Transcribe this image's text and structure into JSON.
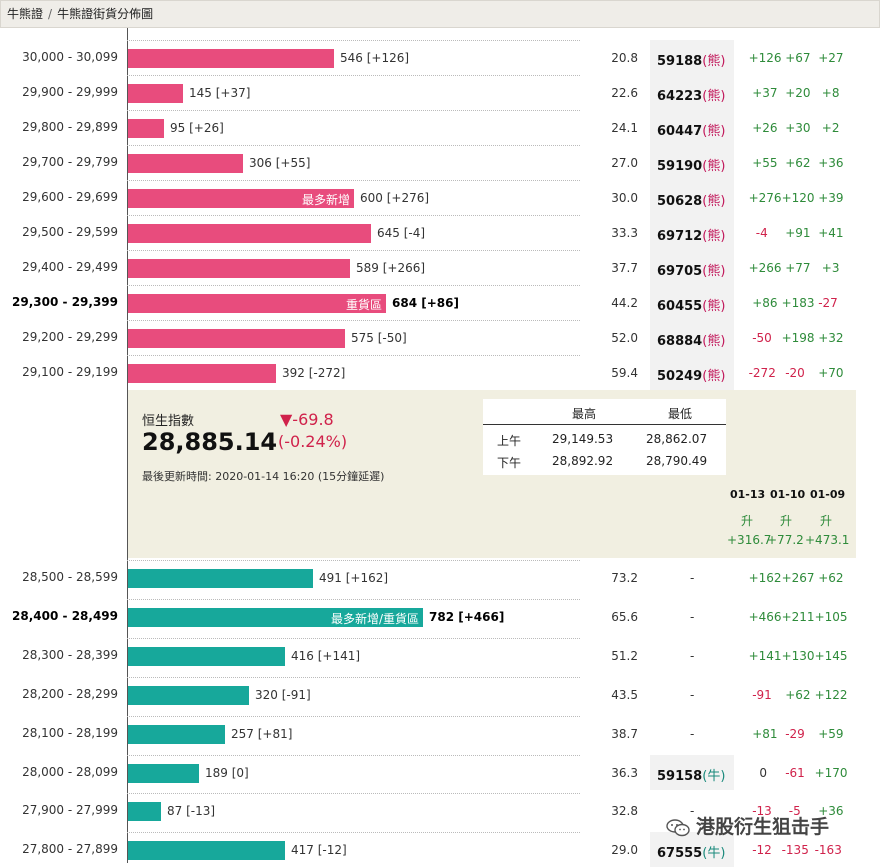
{
  "breadcrumb": [
    "牛熊證",
    "牛熊證街貨分佈圖"
  ],
  "bear_rows": [
    {
      "range": "30,000 - 30,099",
      "bar_value": 546,
      "count": "546 [+126]",
      "tag": "",
      "bold": false,
      "pct": "20.8",
      "code": "59188",
      "type": "熊",
      "c1": "+126",
      "c2": "+67",
      "c3": "+27"
    },
    {
      "range": "29,900 - 29,999",
      "bar_value": 145,
      "count": "145 [+37]",
      "tag": "",
      "bold": false,
      "pct": "22.6",
      "code": "64223",
      "type": "熊",
      "c1": "+37",
      "c2": "+20",
      "c3": "+8"
    },
    {
      "range": "29,800 - 29,899",
      "bar_value": 95,
      "count": "95 [+26]",
      "tag": "",
      "bold": false,
      "pct": "24.1",
      "code": "60447",
      "type": "熊",
      "c1": "+26",
      "c2": "+30",
      "c3": "+2"
    },
    {
      "range": "29,700 - 29,799",
      "bar_value": 306,
      "count": "306 [+55]",
      "tag": "",
      "bold": false,
      "pct": "27.0",
      "code": "59190",
      "type": "熊",
      "c1": "+55",
      "c2": "+62",
      "c3": "+36"
    },
    {
      "range": "29,600 - 29,699",
      "bar_value": 600,
      "count": "600 [+276]",
      "tag": "最多新增",
      "bold": false,
      "pct": "30.0",
      "code": "50628",
      "type": "熊",
      "c1": "+276",
      "c2": "+120",
      "c3": "+39"
    },
    {
      "range": "29,500 - 29,599",
      "bar_value": 645,
      "count": "645 [-4]",
      "tag": "",
      "bold": false,
      "pct": "33.3",
      "code": "69712",
      "type": "熊",
      "c1": "-4",
      "c2": "+91",
      "c3": "+41"
    },
    {
      "range": "29,400 - 29,499",
      "bar_value": 589,
      "count": "589 [+266]",
      "tag": "",
      "bold": false,
      "pct": "37.7",
      "code": "69705",
      "type": "熊",
      "c1": "+266",
      "c2": "+77",
      "c3": "+3"
    },
    {
      "range": "29,300 - 29,399",
      "bar_value": 684,
      "count": "684 [+86]",
      "tag": "重貨區",
      "bold": true,
      "pct": "44.2",
      "code": "60455",
      "type": "熊",
      "c1": "+86",
      "c2": "+183",
      "c3": "-27"
    },
    {
      "range": "29,200 - 29,299",
      "bar_value": 575,
      "count": "575 [-50]",
      "tag": "",
      "bold": false,
      "pct": "52.0",
      "code": "68884",
      "type": "熊",
      "c1": "-50",
      "c2": "+198",
      "c3": "+32"
    },
    {
      "range": "29,100 - 29,199",
      "bar_value": 392,
      "count": "392 [-272]",
      "tag": "",
      "bold": false,
      "pct": "59.4",
      "code": "50249",
      "type": "熊",
      "c1": "-272",
      "c2": "-20",
      "c3": "+70"
    }
  ],
  "index": {
    "name": "恒生指數",
    "value": "28,885.14",
    "change": "▼-69.8",
    "change_pct": "(-0.24%)",
    "updated": "最後更新時間: 2020-01-14 16:20 (15分鐘延遲)",
    "table": {
      "head_high": "最高",
      "head_low": "最低",
      "am_label": "上午",
      "am_high": "29,149.53",
      "am_low": "28,862.07",
      "pm_label": "下午",
      "pm_high": "28,892.92",
      "pm_low": "28,790.49"
    },
    "dates": [
      "01-13",
      "01-10",
      "01-09"
    ],
    "date_dirs": [
      "升",
      "升",
      "升"
    ],
    "date_changes": [
      "+316.7",
      "+77.2",
      "+473.1"
    ]
  },
  "bull_rows": [
    {
      "range": "28,500 - 28,599",
      "bar_value": 491,
      "count": "491 [+162]",
      "tag": "",
      "bold": false,
      "pct": "73.2",
      "code": "",
      "type": "",
      "c1": "+162",
      "c2": "+267",
      "c3": "+62"
    },
    {
      "range": "28,400 - 28,499",
      "bar_value": 782,
      "count": "782 [+466]",
      "tag": "最多新增/重貨區",
      "bold": true,
      "pct": "65.6",
      "code": "",
      "type": "",
      "c1": "+466",
      "c2": "+211",
      "c3": "+105"
    },
    {
      "range": "28,300 - 28,399",
      "bar_value": 416,
      "count": "416 [+141]",
      "tag": "",
      "bold": false,
      "pct": "51.2",
      "code": "",
      "type": "",
      "c1": "+141",
      "c2": "+130",
      "c3": "+145"
    },
    {
      "range": "28,200 - 28,299",
      "bar_value": 320,
      "count": "320 [-91]",
      "tag": "",
      "bold": false,
      "pct": "43.5",
      "code": "",
      "type": "",
      "c1": "-91",
      "c2": "+62",
      "c3": "+122"
    },
    {
      "range": "28,100 - 28,199",
      "bar_value": 257,
      "count": "257 [+81]",
      "tag": "",
      "bold": false,
      "pct": "38.7",
      "code": "",
      "type": "",
      "c1": "+81",
      "c2": "-29",
      "c3": "+59"
    },
    {
      "range": "28,000 - 28,099",
      "bar_value": 189,
      "count": "189 [0]",
      "tag": "",
      "bold": false,
      "pct": "36.3",
      "code": "59158",
      "type": "牛",
      "c1": "0",
      "c2": "-61",
      "c3": "+170"
    },
    {
      "range": "27,900 - 27,999",
      "bar_value": 87,
      "count": "87 [-13]",
      "tag": "",
      "bold": false,
      "pct": "32.8",
      "code": "",
      "type": "",
      "c1": "-13",
      "c2": "-5",
      "c3": "+36"
    },
    {
      "range": "27,800 - 27,899",
      "bar_value": 417,
      "count": "417 [-12]",
      "tag": "",
      "bold": false,
      "pct": "29.0",
      "code": "67555",
      "type": "牛",
      "c1": "-12",
      "c2": "-135",
      "c3": "-163"
    }
  ],
  "dash_text": "-",
  "watermark": "港股衍生狙击手",
  "colors": {
    "bear": "#e84c7d",
    "bull": "#17a89b",
    "up": "#2e8b3a",
    "down": "#d0224b"
  }
}
